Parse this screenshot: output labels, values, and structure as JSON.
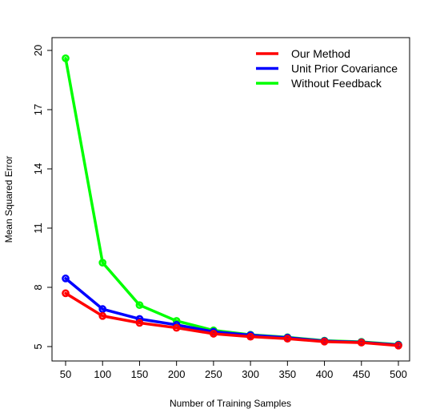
{
  "chart_data": {
    "type": "line",
    "title": "",
    "xlabel": "Number of Training Samples",
    "ylabel": "Mean Squared Error",
    "x": [
      50,
      100,
      150,
      200,
      250,
      300,
      350,
      400,
      450,
      500
    ],
    "xlim": [
      50,
      500
    ],
    "ylim": [
      5,
      20
    ],
    "xticks": [
      50,
      100,
      150,
      200,
      250,
      300,
      350,
      400,
      450,
      500
    ],
    "yticks": [
      5,
      8,
      11,
      14,
      17,
      20
    ],
    "grid": false,
    "legend_position": "top-right",
    "series": [
      {
        "name": "Our Method",
        "color": "#ff0000",
        "values": [
          7.7,
          6.55,
          6.2,
          5.95,
          5.65,
          5.5,
          5.4,
          5.25,
          5.2,
          5.05
        ]
      },
      {
        "name": "Unit Prior Covariance",
        "color": "#0000ff",
        "values": [
          8.45,
          6.9,
          6.4,
          6.1,
          5.75,
          5.58,
          5.45,
          5.28,
          5.22,
          5.08
        ]
      },
      {
        "name": "Without Feedback",
        "color": "#00ff00",
        "values": [
          19.6,
          9.25,
          7.1,
          6.3,
          5.82,
          5.6,
          5.47,
          5.3,
          5.24,
          5.1
        ]
      }
    ]
  }
}
